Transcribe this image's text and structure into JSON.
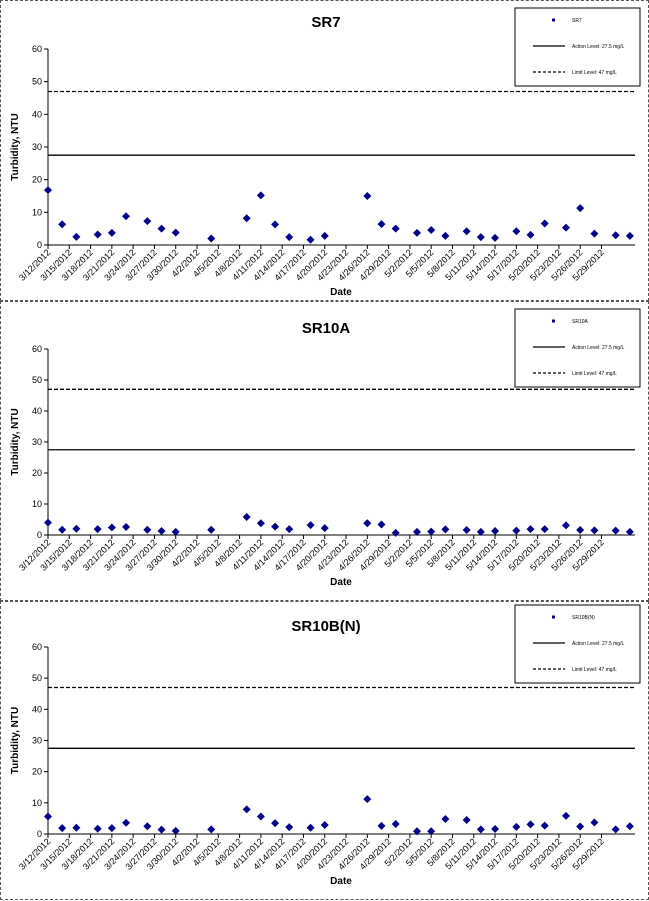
{
  "chart_data": [
    {
      "type": "scatter",
      "title": "SR7",
      "xlabel": "Date",
      "ylabel": "Turbidity, NTU",
      "ylim": [
        0,
        60
      ],
      "yticks": [
        0,
        10,
        20,
        30,
        40,
        50,
        60
      ],
      "xticks": [
        "3/12/2012",
        "3/15/2012",
        "3/18/2012",
        "3/21/2012",
        "3/24/2012",
        "3/27/2012",
        "3/30/2012",
        "4/2/2012",
        "4/5/2012",
        "4/8/2012",
        "4/11/2012",
        "4/14/2012",
        "4/17/2012",
        "4/20/2012",
        "4/23/2012",
        "4/26/2012",
        "4/29/2012",
        "5/2/2012",
        "5/5/2012",
        "5/8/2012",
        "5/11/2012",
        "5/14/2012",
        "5/17/2012",
        "5/20/2012",
        "5/23/2012",
        "5/26/2012",
        "5/29/2012"
      ],
      "xrange": [
        "3/12/2012",
        "5/30/2012"
      ],
      "grid": false,
      "legend_position": "top-right",
      "series": [
        {
          "name": "SR7",
          "marker": "diamond",
          "color": "#00008B",
          "points": [
            [
              "3/12/2012",
              16.8
            ],
            [
              "3/14/2012",
              6.3
            ],
            [
              "3/16/2012",
              2.5
            ],
            [
              "3/19/2012",
              3.2
            ],
            [
              "3/21/2012",
              3.7
            ],
            [
              "3/23/2012",
              8.8
            ],
            [
              "3/26/2012",
              7.3
            ],
            [
              "3/28/2012",
              5.0
            ],
            [
              "3/30/2012",
              3.8
            ],
            [
              "4/4/2012",
              2.0
            ],
            [
              "4/9/2012",
              8.2
            ],
            [
              "4/11/2012",
              15.2
            ],
            [
              "4/13/2012",
              6.3
            ],
            [
              "4/15/2012",
              2.4
            ],
            [
              "4/18/2012",
              1.6
            ],
            [
              "4/20/2012",
              2.8
            ],
            [
              "4/26/2012",
              15.0
            ],
            [
              "4/28/2012",
              6.4
            ],
            [
              "4/30/2012",
              5.0
            ],
            [
              "5/3/2012",
              3.7
            ],
            [
              "5/5/2012",
              4.6
            ],
            [
              "5/7/2012",
              2.8
            ],
            [
              "5/10/2012",
              4.2
            ],
            [
              "5/12/2012",
              2.4
            ],
            [
              "5/14/2012",
              2.2
            ],
            [
              "5/17/2012",
              4.2
            ],
            [
              "5/19/2012",
              3.1
            ],
            [
              "5/21/2012",
              6.6
            ],
            [
              "5/24/2012",
              5.3
            ],
            [
              "5/26/2012",
              11.3
            ],
            [
              "5/28/2012",
              3.5
            ],
            [
              "5/31/2012",
              3.0
            ],
            [
              "6/2/2012",
              2.8
            ]
          ]
        },
        {
          "name": "Action Level: 27.5 mg/L",
          "style": "solid",
          "value": 27.5
        },
        {
          "name": "Limit Level: 47 mg/L",
          "style": "dashed",
          "value": 47
        }
      ]
    },
    {
      "type": "scatter",
      "title": "SR10A",
      "xlabel": "Date",
      "ylabel": "Turbidity, NTU",
      "ylim": [
        0,
        60
      ],
      "yticks": [
        0,
        10,
        20,
        30,
        40,
        50,
        60
      ],
      "xticks": [
        "3/12/2012",
        "3/15/2012",
        "3/18/2012",
        "3/21/2012",
        "3/24/2012",
        "3/27/2012",
        "3/30/2012",
        "4/2/2012",
        "4/5/2012",
        "4/8/2012",
        "4/11/2012",
        "4/14/2012",
        "4/17/2012",
        "4/20/2012",
        "4/23/2012",
        "4/26/2012",
        "4/29/2012",
        "5/2/2012",
        "5/5/2012",
        "5/8/2012",
        "5/11/2012",
        "5/14/2012",
        "5/17/2012",
        "5/20/2012",
        "5/23/2012",
        "5/26/2012",
        "5/29/2012"
      ],
      "xrange": [
        "3/12/2012",
        "5/30/2012"
      ],
      "grid": false,
      "legend_position": "top-right",
      "series": [
        {
          "name": "SR10A",
          "marker": "diamond",
          "color": "#00008B",
          "points": [
            [
              "3/12/2012",
              4.0
            ],
            [
              "3/14/2012",
              1.7
            ],
            [
              "3/16/2012",
              2.0
            ],
            [
              "3/19/2012",
              1.9
            ],
            [
              "3/21/2012",
              2.4
            ],
            [
              "3/23/2012",
              2.6
            ],
            [
              "3/26/2012",
              1.7
            ],
            [
              "3/28/2012",
              1.3
            ],
            [
              "3/30/2012",
              1.0
            ],
            [
              "4/4/2012",
              1.7
            ],
            [
              "4/9/2012",
              5.8
            ],
            [
              "4/11/2012",
              3.8
            ],
            [
              "4/13/2012",
              2.7
            ],
            [
              "4/15/2012",
              1.9
            ],
            [
              "4/18/2012",
              3.2
            ],
            [
              "4/20/2012",
              2.2
            ],
            [
              "4/26/2012",
              3.8
            ],
            [
              "4/28/2012",
              3.4
            ],
            [
              "4/30/2012",
              0.7
            ],
            [
              "5/3/2012",
              1.0
            ],
            [
              "5/5/2012",
              1.1
            ],
            [
              "5/7/2012",
              1.8
            ],
            [
              "5/10/2012",
              1.6
            ],
            [
              "5/12/2012",
              1.0
            ],
            [
              "5/14/2012",
              1.3
            ],
            [
              "5/17/2012",
              1.4
            ],
            [
              "5/19/2012",
              1.9
            ],
            [
              "5/21/2012",
              1.9
            ],
            [
              "5/24/2012",
              3.1
            ],
            [
              "5/26/2012",
              1.6
            ],
            [
              "5/28/2012",
              1.5
            ],
            [
              "5/31/2012",
              1.4
            ],
            [
              "6/2/2012",
              1.0
            ]
          ]
        },
        {
          "name": "Action Level: 27.5 mg/L",
          "style": "solid",
          "value": 27.5
        },
        {
          "name": "Limit Level: 47 mg/L",
          "style": "dashed",
          "value": 47
        }
      ]
    },
    {
      "type": "scatter",
      "title": "SR10B(N)",
      "xlabel": "Date",
      "ylabel": "Turbidity, NTU",
      "ylim": [
        0,
        60
      ],
      "yticks": [
        0,
        10,
        20,
        30,
        40,
        50,
        60
      ],
      "xticks": [
        "3/12/2012",
        "3/15/2012",
        "3/18/2012",
        "3/21/2012",
        "3/24/2012",
        "3/27/2012",
        "3/30/2012",
        "4/2/2012",
        "4/5/2012",
        "4/8/2012",
        "4/11/2012",
        "4/14/2012",
        "4/17/2012",
        "4/20/2012",
        "4/23/2012",
        "4/26/2012",
        "4/29/2012",
        "5/2/2012",
        "5/5/2012",
        "5/8/2012",
        "5/11/2012",
        "5/14/2012",
        "5/17/2012",
        "5/20/2012",
        "5/23/2012",
        "5/26/2012",
        "5/29/2012"
      ],
      "xrange": [
        "3/12/2012",
        "5/30/2012"
      ],
      "grid": false,
      "legend_position": "top-right",
      "series": [
        {
          "name": "SR10B(N)",
          "marker": "diamond",
          "color": "#00008B",
          "points": [
            [
              "3/12/2012",
              5.6
            ],
            [
              "3/14/2012",
              1.9
            ],
            [
              "3/16/2012",
              2.0
            ],
            [
              "3/19/2012",
              1.7
            ],
            [
              "3/21/2012",
              1.9
            ],
            [
              "3/23/2012",
              3.6
            ],
            [
              "3/26/2012",
              2.5
            ],
            [
              "3/28/2012",
              1.4
            ],
            [
              "3/30/2012",
              1.0
            ],
            [
              "4/4/2012",
              1.5
            ],
            [
              "4/9/2012",
              7.9
            ],
            [
              "4/11/2012",
              5.6
            ],
            [
              "4/13/2012",
              3.5
            ],
            [
              "4/15/2012",
              2.2
            ],
            [
              "4/18/2012",
              2.0
            ],
            [
              "4/20/2012",
              2.9
            ],
            [
              "4/26/2012",
              11.2
            ],
            [
              "4/28/2012",
              2.6
            ],
            [
              "4/30/2012",
              3.2
            ],
            [
              "5/3/2012",
              0.9
            ],
            [
              "5/5/2012",
              0.9
            ],
            [
              "5/7/2012",
              4.8
            ],
            [
              "5/10/2012",
              4.5
            ],
            [
              "5/12/2012",
              1.5
            ],
            [
              "5/14/2012",
              1.6
            ],
            [
              "5/17/2012",
              2.3
            ],
            [
              "5/19/2012",
              3.1
            ],
            [
              "5/21/2012",
              2.7
            ],
            [
              "5/24/2012",
              5.8
            ],
            [
              "5/26/2012",
              2.4
            ],
            [
              "5/28/2012",
              3.7
            ],
            [
              "5/31/2012",
              1.5
            ],
            [
              "6/2/2012",
              2.5
            ]
          ]
        },
        {
          "name": "Action Level: 27.5 mg/L",
          "style": "solid",
          "value": 27.5
        },
        {
          "name": "Limit Level: 47 mg/L",
          "style": "dashed",
          "value": 47
        }
      ]
    }
  ]
}
